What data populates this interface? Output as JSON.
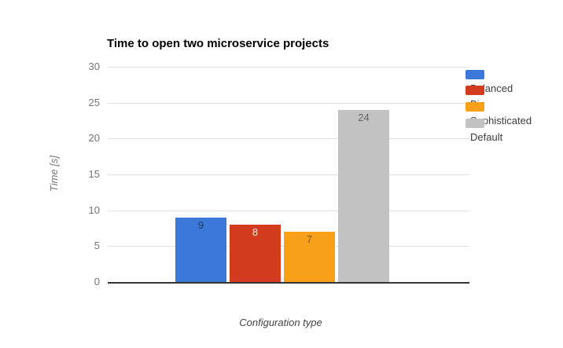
{
  "page": {
    "background": "#ffffff"
  },
  "chart_data": {
    "type": "bar",
    "title": "Time to open two microservice projects",
    "xlabel": "Configuration type",
    "ylabel": "Time [s]",
    "categories": [
      "Balanced",
      "Big",
      "Sophisticated",
      "Default"
    ],
    "series": [
      {
        "name": "Balanced",
        "value": 9,
        "color": "#3C78D8",
        "bar_label": "9",
        "bar_label_style": "dark"
      },
      {
        "name": "Big",
        "value": 8,
        "color": "#D33B1E",
        "bar_label": "8",
        "bar_label_style": "light"
      },
      {
        "name": "Sophisticated",
        "value": 7,
        "color": "#F9A01B",
        "bar_label": "7",
        "bar_label_style": "dark"
      },
      {
        "name": "Default",
        "value": 24,
        "color": "#C2C2C2",
        "bar_label": "24",
        "bar_label_style": "dark"
      }
    ],
    "ylim": [
      0,
      30
    ],
    "yticks": [
      30,
      25,
      20,
      15,
      10,
      5,
      0
    ],
    "grid": true,
    "legend_position": "right"
  },
  "legend": {
    "items": [
      {
        "label": "Balanced",
        "color": "#3C78D8"
      },
      {
        "label": "Big",
        "color": "#D33B1E"
      },
      {
        "label": "Sophisticated",
        "color": "#F9A01B"
      },
      {
        "label": "Default",
        "color": "#C2C2C2"
      }
    ]
  },
  "colors": {
    "gridline": "#E0E0E0",
    "axis_line": "#333333",
    "tick_text": "#757575",
    "title_text": "#000000",
    "x_axis_title_text": "#444444",
    "y_axis_title_text": "#757575",
    "legend_text": "#3C3C3C",
    "bar_label_dark": "rgba(0,0,0,0.5)",
    "bar_label_light": "rgba(255,255,255,0.87)"
  }
}
